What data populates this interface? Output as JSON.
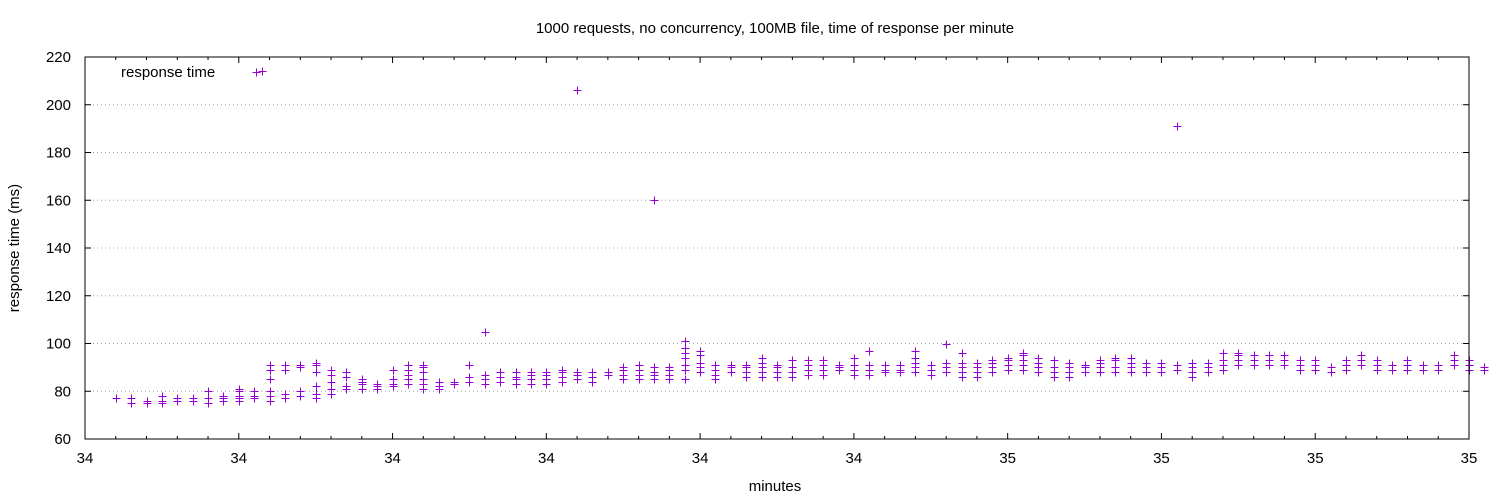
{
  "chart_data": {
    "type": "scatter",
    "title": "1000 requests, no concurrency, 100MB file, time of response per minute",
    "xlabel": "minutes",
    "ylabel": "response time (ms)",
    "ylim": [
      60,
      220
    ],
    "yticks": [
      60,
      80,
      100,
      120,
      140,
      160,
      180,
      200,
      220
    ],
    "xlim": [
      0,
      90
    ],
    "xtick_labels": [
      "34",
      "34",
      "34",
      "34",
      "34",
      "34",
      "35",
      "35",
      "35",
      "35"
    ],
    "grid": "horizontal dotted",
    "legend": {
      "label": "response time",
      "position": "top-left"
    },
    "marker": "+",
    "color": "#9400d3",
    "series": [
      {
        "name": "response time",
        "columns": [
          {
            "x": 2,
            "values": [
              77
            ]
          },
          {
            "x": 3,
            "values": [
              75,
              77
            ]
          },
          {
            "x": 4,
            "values": [
              75,
              76
            ]
          },
          {
            "x": 5,
            "values": [
              75,
              76,
              78
            ]
          },
          {
            "x": 6,
            "values": [
              76,
              77
            ]
          },
          {
            "x": 7,
            "values": [
              76,
              77
            ]
          },
          {
            "x": 8,
            "values": [
              75,
              77,
              80
            ]
          },
          {
            "x": 9,
            "values": [
              76,
              77,
              78
            ]
          },
          {
            "x": 10,
            "values": [
              76,
              77,
              78,
              80,
              81
            ]
          },
          {
            "x": 11,
            "values": [
              77,
              78,
              80
            ]
          },
          {
            "x": 11.5,
            "values": [
              214
            ]
          },
          {
            "x": 12,
            "values": [
              76,
              78,
              80,
              85,
              89,
              91
            ]
          },
          {
            "x": 13,
            "values": [
              77,
              79,
              89,
              91
            ]
          },
          {
            "x": 14,
            "values": [
              78,
              80,
              90,
              91
            ]
          },
          {
            "x": 15,
            "values": [
              77,
              79,
              82,
              88,
              91,
              92
            ]
          },
          {
            "x": 16,
            "values": [
              79,
              81,
              84,
              87,
              89
            ]
          },
          {
            "x": 17,
            "values": [
              81,
              82,
              86,
              88
            ]
          },
          {
            "x": 18,
            "values": [
              81,
              83,
              84,
              85
            ]
          },
          {
            "x": 19,
            "values": [
              81,
              82,
              83
            ]
          },
          {
            "x": 20,
            "values": [
              82,
              83,
              85,
              89
            ]
          },
          {
            "x": 21,
            "values": [
              83,
              85,
              87,
              89,
              91
            ]
          },
          {
            "x": 22,
            "values": [
              81,
              83,
              85,
              88,
              90,
              91
            ]
          },
          {
            "x": 23,
            "values": [
              81,
              82,
              84
            ]
          },
          {
            "x": 24,
            "values": [
              83,
              84
            ]
          },
          {
            "x": 25,
            "values": [
              84,
              86,
              91
            ]
          },
          {
            "x": 26,
            "values": [
              83,
              85,
              87,
              105
            ]
          },
          {
            "x": 27,
            "values": [
              84,
              86,
              88
            ]
          },
          {
            "x": 28,
            "values": [
              83,
              85,
              86,
              88
            ]
          },
          {
            "x": 29,
            "values": [
              83,
              85,
              87,
              88
            ]
          },
          {
            "x": 30,
            "values": [
              83,
              85,
              87,
              88
            ]
          },
          {
            "x": 31,
            "values": [
              84,
              86,
              88,
              89
            ]
          },
          {
            "x": 32,
            "values": [
              85,
              87,
              88,
              206
            ]
          },
          {
            "x": 33,
            "values": [
              84,
              86,
              88
            ]
          },
          {
            "x": 34,
            "values": [
              87,
              88
            ]
          },
          {
            "x": 35,
            "values": [
              85,
              87,
              89,
              90
            ]
          },
          {
            "x": 36,
            "values": [
              85,
              87,
              89,
              91
            ]
          },
          {
            "x": 37,
            "values": [
              85,
              87,
              88,
              90,
              160
            ]
          },
          {
            "x": 38,
            "values": [
              85,
              87,
              89,
              90
            ]
          },
          {
            "x": 39,
            "values": [
              85,
              89,
              91,
              94,
              96,
              98,
              101
            ]
          },
          {
            "x": 40,
            "values": [
              88,
              90,
              92,
              95,
              97
            ]
          },
          {
            "x": 41,
            "values": [
              85,
              87,
              89,
              91
            ]
          },
          {
            "x": 42,
            "values": [
              88,
              90,
              91
            ]
          },
          {
            "x": 43,
            "values": [
              86,
              88,
              90,
              91
            ]
          },
          {
            "x": 44,
            "values": [
              86,
              88,
              90,
              92,
              94
            ]
          },
          {
            "x": 45,
            "values": [
              86,
              88,
              90,
              91
            ]
          },
          {
            "x": 46,
            "values": [
              86,
              88,
              90,
              93
            ]
          },
          {
            "x": 47,
            "values": [
              87,
              89,
              91,
              93
            ]
          },
          {
            "x": 48,
            "values": [
              87,
              89,
              91,
              93
            ]
          },
          {
            "x": 49,
            "values": [
              89,
              90,
              91
            ]
          },
          {
            "x": 50,
            "values": [
              87,
              89,
              91,
              94
            ]
          },
          {
            "x": 51,
            "values": [
              87,
              89,
              91,
              97
            ]
          },
          {
            "x": 52,
            "values": [
              88,
              89,
              91
            ]
          },
          {
            "x": 53,
            "values": [
              88,
              89,
              91
            ]
          },
          {
            "x": 54,
            "values": [
              88,
              90,
              92,
              94,
              97
            ]
          },
          {
            "x": 55,
            "values": [
              87,
              89,
              91
            ]
          },
          {
            "x": 56,
            "values": [
              88,
              90,
              92,
              100
            ]
          },
          {
            "x": 57,
            "values": [
              86,
              88,
              90,
              92,
              96
            ]
          },
          {
            "x": 58,
            "values": [
              86,
              88,
              90,
              92
            ]
          },
          {
            "x": 59,
            "values": [
              88,
              90,
              92,
              93
            ]
          },
          {
            "x": 60,
            "values": [
              89,
              91,
              93,
              94
            ]
          },
          {
            "x": 61,
            "values": [
              89,
              91,
              93,
              95,
              96
            ]
          },
          {
            "x": 62,
            "values": [
              88,
              90,
              92,
              94
            ]
          },
          {
            "x": 63,
            "values": [
              86,
              88,
              90,
              93
            ]
          },
          {
            "x": 64,
            "values": [
              86,
              88,
              90,
              92
            ]
          },
          {
            "x": 65,
            "values": [
              88,
              90,
              91
            ]
          },
          {
            "x": 66,
            "values": [
              88,
              90,
              92,
              93
            ]
          },
          {
            "x": 67,
            "values": [
              88,
              90,
              93,
              94
            ]
          },
          {
            "x": 68,
            "values": [
              88,
              90,
              92,
              94
            ]
          },
          {
            "x": 69,
            "values": [
              88,
              90,
              92
            ]
          },
          {
            "x": 70,
            "values": [
              88,
              90,
              92
            ]
          },
          {
            "x": 71,
            "values": [
              89,
              91,
              191
            ]
          },
          {
            "x": 72,
            "values": [
              86,
              88,
              90,
              92
            ]
          },
          {
            "x": 73,
            "values": [
              88,
              90,
              92
            ]
          },
          {
            "x": 74,
            "values": [
              89,
              91,
              93,
              96
            ]
          },
          {
            "x": 75,
            "values": [
              91,
              93,
              95,
              96
            ]
          },
          {
            "x": 76,
            "values": [
              91,
              93,
              95
            ]
          },
          {
            "x": 77,
            "values": [
              91,
              93,
              95
            ]
          },
          {
            "x": 78,
            "values": [
              91,
              93,
              95
            ]
          },
          {
            "x": 79,
            "values": [
              89,
              91,
              93
            ]
          },
          {
            "x": 80,
            "values": [
              89,
              91,
              93
            ]
          },
          {
            "x": 81,
            "values": [
              88,
              90
            ]
          },
          {
            "x": 82,
            "values": [
              89,
              91,
              93
            ]
          },
          {
            "x": 83,
            "values": [
              91,
              93,
              95
            ]
          },
          {
            "x": 84,
            "values": [
              89,
              91,
              93
            ]
          },
          {
            "x": 85,
            "values": [
              89,
              91
            ]
          },
          {
            "x": 86,
            "values": [
              89,
              91,
              93
            ]
          },
          {
            "x": 87,
            "values": [
              89,
              91
            ]
          },
          {
            "x": 88,
            "values": [
              89,
              91
            ]
          },
          {
            "x": 89,
            "values": [
              91,
              93,
              95
            ]
          },
          {
            "x": 90,
            "values": [
              89,
              91,
              93
            ]
          },
          {
            "x": 91,
            "values": [
              89,
              90
            ]
          }
        ]
      }
    ]
  }
}
